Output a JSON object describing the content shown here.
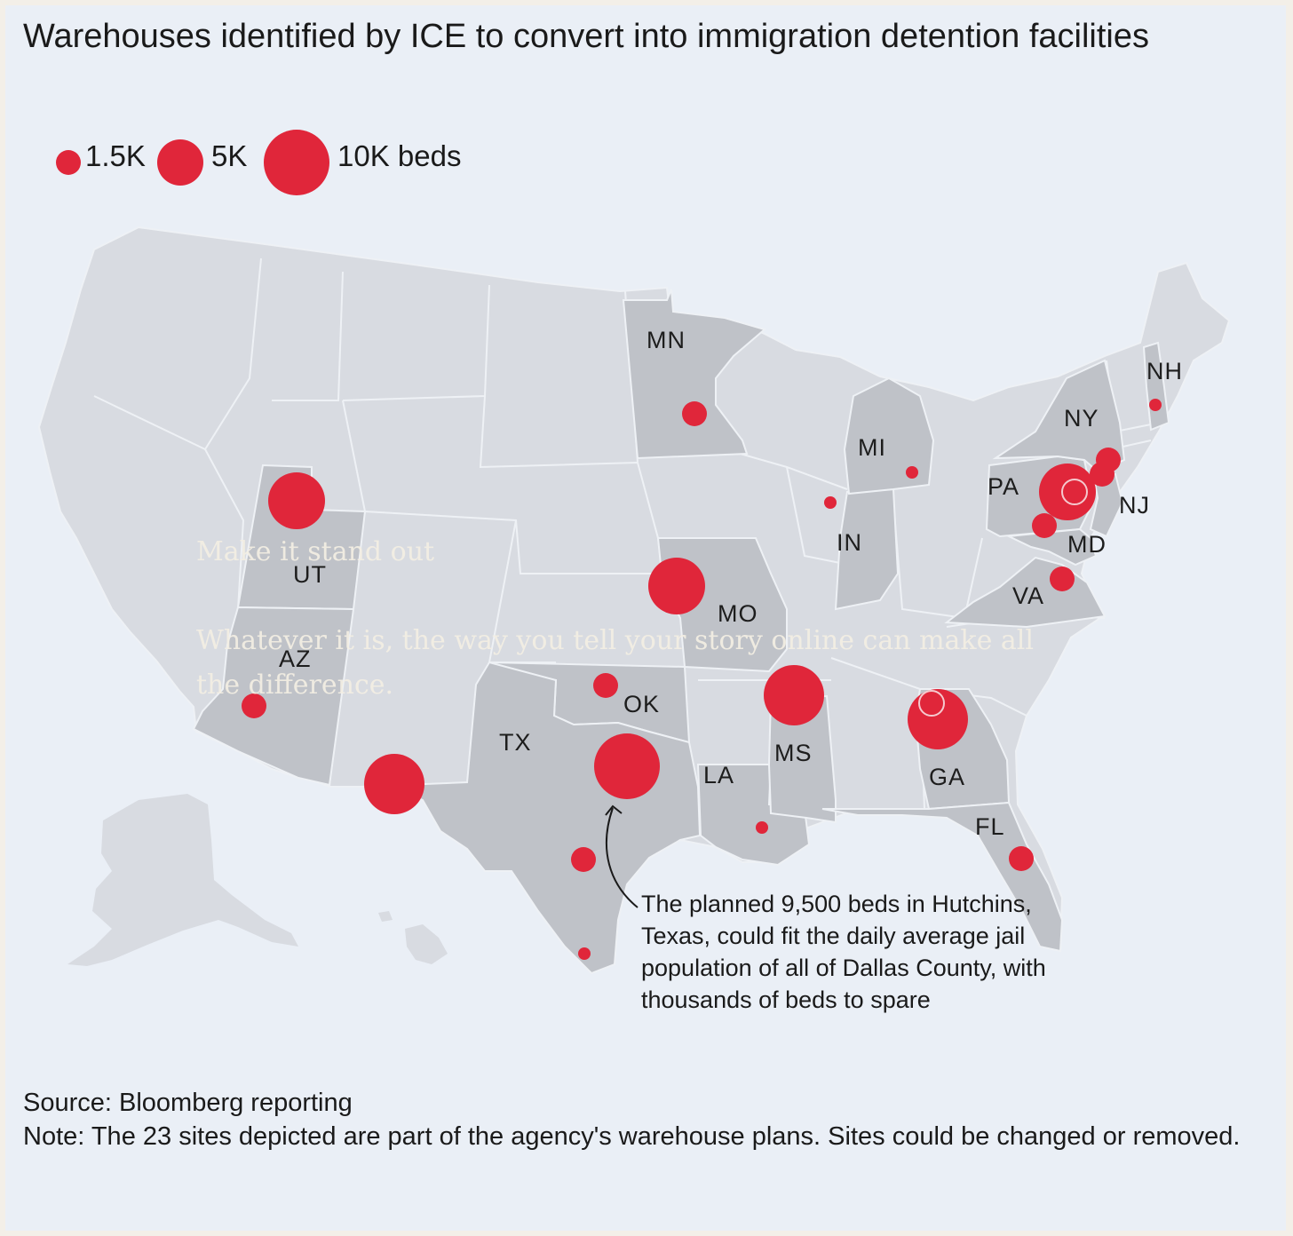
{
  "title": "Warehouses identified by ICE to convert into immigration detention facilities",
  "legend": {
    "items": [
      {
        "label": "1.5K",
        "beds": 1500
      },
      {
        "label": "5K",
        "beds": 5000
      },
      {
        "label": "10K beds",
        "beds": 10000
      }
    ],
    "marker_color": "#e0263a"
  },
  "states": [
    "MN",
    "NH",
    "NY",
    "MI",
    "PA",
    "NJ",
    "MD",
    "IN",
    "UT",
    "MO",
    "VA",
    "AZ",
    "OK",
    "TX",
    "MS",
    "LA",
    "GA",
    "FL"
  ],
  "annotation": "The planned 9,500 beds in Hutchins, Texas, could fit the daily average jail population of all of Dallas County, with thousands of beds to spare",
  "overlay": {
    "heading": "Make it stand out",
    "body": "Whatever it is, the way you tell your story online can make all the difference."
  },
  "footer": {
    "source": "Source: Bloomberg reporting",
    "note": "Note: The 23 sites depicted are part of the agency's warehouse plans. Sites could be changed or removed."
  },
  "colors": {
    "background": "#eaeff6",
    "land": "#d8dbe1",
    "highlighted_state": "#bfc2c8",
    "marker": "#e0263a"
  }
}
